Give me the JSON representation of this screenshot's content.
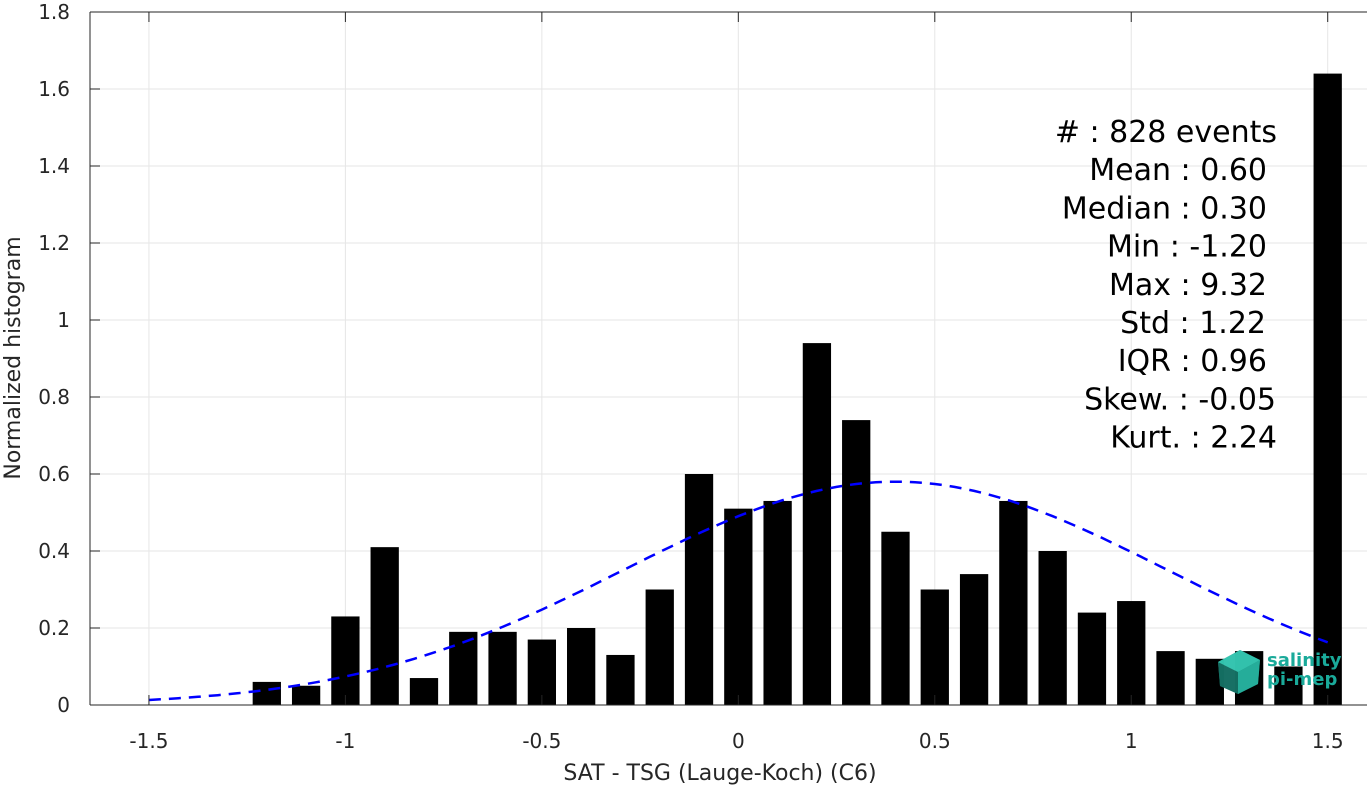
{
  "chart_data": {
    "type": "bar",
    "xlabel": "SAT - TSG (Lauge-Koch) (C6)",
    "ylabel": "Normalized histogram",
    "xlim": [
      -1.65,
      1.6
    ],
    "ylim": [
      0,
      1.8
    ],
    "xticks": [
      -1.5,
      -1,
      -0.5,
      0,
      0.5,
      1,
      1.5
    ],
    "xtick_labels": [
      "-1.5",
      "-1",
      "-0.5",
      "0",
      "0.5",
      "1",
      "1.5"
    ],
    "yticks": [
      0,
      0.2,
      0.4,
      0.6,
      0.8,
      1,
      1.2,
      1.4,
      1.6,
      1.8
    ],
    "ytick_labels": [
      "0",
      "0.2",
      "0.4",
      "0.6",
      "0.8",
      "1",
      "1.2",
      "1.4",
      "1.6",
      "1.8"
    ],
    "grid": true,
    "bar_width": 0.072,
    "bins": [
      {
        "x": -1.2,
        "y": 0.06
      },
      {
        "x": -1.1,
        "y": 0.05
      },
      {
        "x": -1.0,
        "y": 0.23
      },
      {
        "x": -0.9,
        "y": 0.41
      },
      {
        "x": -0.8,
        "y": 0.07
      },
      {
        "x": -0.7,
        "y": 0.19
      },
      {
        "x": -0.6,
        "y": 0.19
      },
      {
        "x": -0.5,
        "y": 0.17
      },
      {
        "x": -0.4,
        "y": 0.2
      },
      {
        "x": -0.3,
        "y": 0.13
      },
      {
        "x": -0.2,
        "y": 0.3
      },
      {
        "x": -0.1,
        "y": 0.6
      },
      {
        "x": 0.0,
        "y": 0.51
      },
      {
        "x": 0.1,
        "y": 0.53
      },
      {
        "x": 0.2,
        "y": 0.94
      },
      {
        "x": 0.3,
        "y": 0.74
      },
      {
        "x": 0.4,
        "y": 0.45
      },
      {
        "x": 0.5,
        "y": 0.3
      },
      {
        "x": 0.6,
        "y": 0.34
      },
      {
        "x": 0.7,
        "y": 0.53
      },
      {
        "x": 0.8,
        "y": 0.4
      },
      {
        "x": 0.9,
        "y": 0.24
      },
      {
        "x": 1.0,
        "y": 0.27
      },
      {
        "x": 1.1,
        "y": 0.14
      },
      {
        "x": 1.2,
        "y": 0.12
      },
      {
        "x": 1.3,
        "y": 0.14
      },
      {
        "x": 1.4,
        "y": 0.1
      },
      {
        "x": 1.5,
        "y": 1.64
      }
    ],
    "fit_curve": {
      "style": "dashed",
      "color": "#0000ff",
      "mean": 0.4,
      "std": 0.69,
      "peak": 0.58,
      "x_range": [
        -1.5,
        1.5
      ]
    },
    "bar_color": "#000000",
    "stats": [
      "#  : 828 events",
      "Mean : 0.60",
      "Median : 0.30",
      "Min : -1.20",
      "Max : 9.32",
      "Std : 1.22",
      "IQR : 0.96",
      "Skew. : -0.05",
      "Kurt. : 2.24"
    ]
  },
  "logo": {
    "line1": "salinity",
    "line2": "pi-mep",
    "color": "#1aaa9a"
  }
}
